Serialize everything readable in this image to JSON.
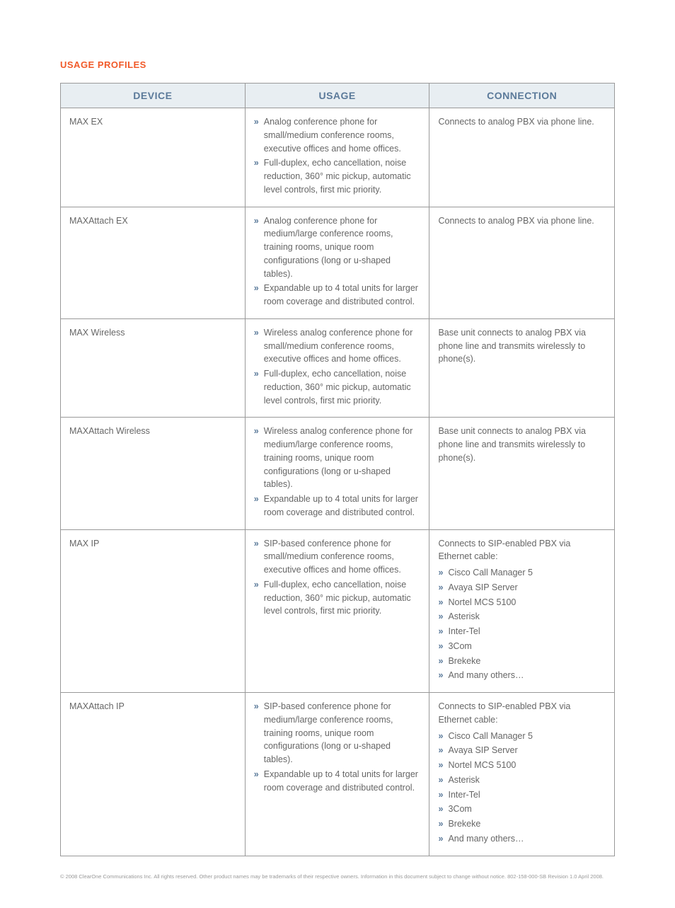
{
  "section_title": "USAGE PROFILES",
  "columns": [
    "DEVICE",
    "USAGE",
    "CONNECTION"
  ],
  "rows": [
    {
      "device": "MAX EX",
      "usage": [
        "Analog conference phone for small/medium conference rooms, executive offices and home offices.",
        "Full-duplex, echo cancellation, noise reduction, 360° mic pickup, automatic level controls, first mic priority."
      ],
      "connection_text": "Connects to analog PBX via phone line.",
      "connection_list": []
    },
    {
      "device": "MAXAttach EX",
      "usage": [
        "Analog conference phone for medium/large conference rooms, training rooms, unique room configurations (long or u-shaped tables).",
        "Expandable up to 4 total units for larger room coverage and distributed control."
      ],
      "connection_text": "Connects to analog PBX via phone line.",
      "connection_list": []
    },
    {
      "device": "MAX Wireless",
      "usage": [
        "Wireless analog conference phone for small/medium conference rooms, executive offices and home offices.",
        "Full-duplex, echo cancellation, noise reduction, 360° mic pickup, automatic level controls, first mic priority."
      ],
      "connection_text": "Base unit connects to analog PBX via phone line and transmits wirelessly to phone(s).",
      "connection_list": []
    },
    {
      "device": "MAXAttach Wireless",
      "usage": [
        "Wireless analog conference phone for medium/large conference rooms, training rooms, unique room configurations (long or u-shaped tables).",
        "Expandable up to 4 total units for larger room coverage and distributed control."
      ],
      "connection_text": "Base unit connects to analog PBX via phone line and transmits wirelessly to phone(s).",
      "connection_list": []
    },
    {
      "device": "MAX IP",
      "usage": [
        "SIP-based conference phone for small/medium conference rooms, executive offices and home offices.",
        "Full-duplex, echo cancellation, noise reduction, 360° mic pickup, automatic level controls, first mic priority."
      ],
      "connection_text": "Connects to SIP-enabled PBX via Ethernet cable:",
      "connection_list": [
        "Cisco Call Manager 5",
        "Avaya SIP Server",
        "Nortel MCS 5100",
        "Asterisk",
        "Inter-Tel",
        "3Com",
        "Brekeke",
        "And many others…"
      ]
    },
    {
      "device": "MAXAttach IP",
      "usage": [
        "SIP-based conference phone for medium/large conference rooms, training rooms, unique room configurations (long or u-shaped tables).",
        "Expandable up to 4 total units for larger room coverage and distributed control."
      ],
      "connection_text": "Connects to SIP-enabled PBX via Ethernet cable:",
      "connection_list": [
        "Cisco Call Manager 5",
        "Avaya SIP Server",
        "Nortel MCS 5100",
        "Asterisk",
        "Inter-Tel",
        "3Com",
        "Brekeke",
        "And many others…"
      ]
    }
  ],
  "footer": "© 2008 ClearOne Communications Inc. All rights reserved. Other product names may be trademarks of their respective owners. Information in this document subject to change without notice. 802-158-000-SB Revision 1.0 April 2008.",
  "colors": {
    "accent_orange": "#f15a29",
    "header_bg": "#e8eef2",
    "header_text": "#5b7a9a",
    "border": "#999999",
    "body_text": "#666666",
    "bullet": "#5b7a9a"
  }
}
